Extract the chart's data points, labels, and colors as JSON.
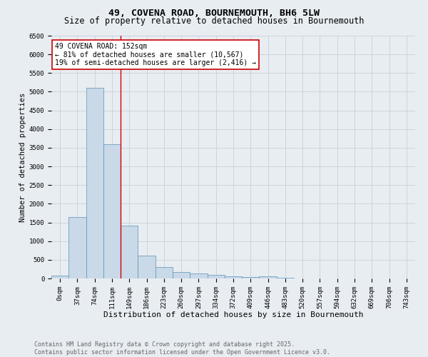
{
  "title": "49, COVENA ROAD, BOURNEMOUTH, BH6 5LW",
  "subtitle": "Size of property relative to detached houses in Bournemouth",
  "xlabel": "Distribution of detached houses by size in Bournemouth",
  "ylabel": "Number of detached properties",
  "bar_labels": [
    "0sqm",
    "37sqm",
    "74sqm",
    "111sqm",
    "149sqm",
    "186sqm",
    "223sqm",
    "260sqm",
    "297sqm",
    "334sqm",
    "372sqm",
    "409sqm",
    "446sqm",
    "483sqm",
    "520sqm",
    "557sqm",
    "594sqm",
    "632sqm",
    "669sqm",
    "706sqm",
    "743sqm"
  ],
  "bar_values": [
    75,
    1650,
    5100,
    3600,
    1420,
    620,
    315,
    165,
    130,
    100,
    55,
    45,
    65,
    10,
    5,
    3,
    2,
    1,
    1,
    0,
    0
  ],
  "bar_color": "#c9d9e8",
  "bar_edge_color": "#5b92b5",
  "vline_color": "#cc0000",
  "vline_index": 3.5,
  "annotation_text": "49 COVENA ROAD: 152sqm\n← 81% of detached houses are smaller (10,567)\n19% of semi-detached houses are larger (2,416) →",
  "annotation_box_color": "#ffffff",
  "annotation_box_edge_color": "#cc0000",
  "ylim": [
    0,
    6500
  ],
  "yticks": [
    0,
    500,
    1000,
    1500,
    2000,
    2500,
    3000,
    3500,
    4000,
    4500,
    5000,
    5500,
    6000,
    6500
  ],
  "grid_color": "#c8d0d8",
  "bg_color": "#e8edf2",
  "plot_bg_color": "#e8edf2",
  "footer_text": "Contains HM Land Registry data © Crown copyright and database right 2025.\nContains public sector information licensed under the Open Government Licence v3.0.",
  "title_fontsize": 9.5,
  "subtitle_fontsize": 8.5,
  "xlabel_fontsize": 8,
  "ylabel_fontsize": 7.5,
  "tick_fontsize": 6.5,
  "annot_fontsize": 7,
  "footer_fontsize": 6
}
